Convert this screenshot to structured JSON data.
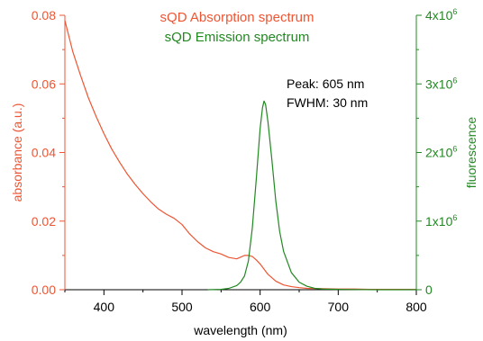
{
  "chart_data": {
    "type": "line",
    "xlabel": "wavelength (nm)",
    "ylabel": "absorbance (a.u.)",
    "y2label": "fluorescence",
    "xlim": [
      350,
      800
    ],
    "ylim": [
      0,
      0.08
    ],
    "y2lim": [
      0,
      4000000
    ],
    "x_ticks": [
      400,
      500,
      600,
      700,
      800
    ],
    "y_ticks": [
      0.0,
      0.02,
      0.04,
      0.06,
      0.08
    ],
    "y_tick_labels": [
      "0.00",
      "0.02",
      "0.04",
      "0.06",
      "0.08"
    ],
    "y2_ticks": [
      0,
      1000000,
      2000000,
      3000000,
      4000000
    ],
    "y2_tick_labels": [
      {
        "mantissa": "0",
        "exp": ""
      },
      {
        "mantissa": "1x10",
        "exp": "6"
      },
      {
        "mantissa": "2x10",
        "exp": "6"
      },
      {
        "mantissa": "3x10",
        "exp": "6"
      },
      {
        "mantissa": "4x10",
        "exp": "6"
      }
    ],
    "grid": false,
    "legend_position": "top-center",
    "annotations": [
      "Peak: 605 nm",
      "FWHM: 30 nm"
    ],
    "series": [
      {
        "name": "sQD Absorption spectrum",
        "color": "#ee5533",
        "axis": "left",
        "x": [
          350,
          355,
          360,
          370,
          380,
          390,
          400,
          410,
          420,
          430,
          440,
          450,
          460,
          470,
          480,
          490,
          500,
          510,
          520,
          530,
          540,
          550,
          560,
          570,
          575,
          580,
          585,
          590,
          595,
          600,
          605,
          610,
          620,
          630,
          640,
          650,
          660,
          680,
          700,
          720,
          740,
          760,
          780,
          800
        ],
        "y": [
          0.0785,
          0.074,
          0.0695,
          0.0625,
          0.056,
          0.0505,
          0.0455,
          0.041,
          0.0372,
          0.0337,
          0.0307,
          0.028,
          0.0256,
          0.0235,
          0.022,
          0.0208,
          0.019,
          0.0162,
          0.014,
          0.0122,
          0.0111,
          0.0104,
          0.0094,
          0.009,
          0.0095,
          0.01,
          0.01,
          0.0097,
          0.0087,
          0.0075,
          0.006,
          0.0045,
          0.0025,
          0.0014,
          0.0009,
          0.0006,
          0.0004,
          0.0003,
          0.0002,
          0.0002,
          0.0001,
          0.0001,
          0.0001,
          0.0001
        ]
      },
      {
        "name": "sQD Emission spectrum",
        "color": "#228822",
        "axis": "right",
        "x": [
          533,
          550,
          560,
          570,
          575,
          580,
          585,
          590,
          595,
          600,
          603,
          605,
          607,
          610,
          615,
          620,
          625,
          630,
          640,
          650,
          660,
          670,
          680,
          700,
          750,
          800
        ],
        "y": [
          0,
          5000,
          20000,
          60000,
          110000,
          200000,
          420000,
          900000,
          1600000,
          2350000,
          2650000,
          2750000,
          2700000,
          2450000,
          1900000,
          1300000,
          850000,
          560000,
          250000,
          110000,
          50000,
          20000,
          10000,
          5000,
          0,
          0
        ]
      }
    ]
  }
}
